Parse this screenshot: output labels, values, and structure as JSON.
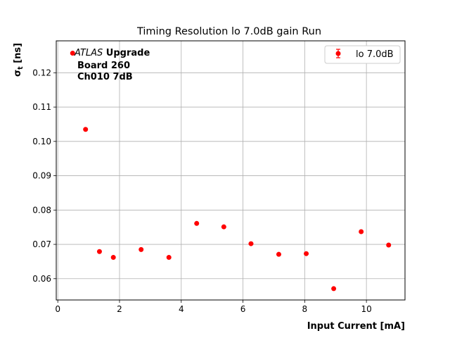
{
  "chart_data": {
    "type": "scatter",
    "title": "Timing Resolution lo 7.0dB gain Run",
    "xlabel": "Input Current [mA]",
    "ylabel_main": "σ",
    "ylabel_sub": "t",
    "ylabel_unit": " [ns]",
    "xlim": [
      -0.05,
      11.25
    ],
    "ylim": [
      0.0538,
      0.1293
    ],
    "x_ticks": [
      0,
      2,
      4,
      6,
      8,
      10
    ],
    "x_tick_labels": [
      "0",
      "2",
      "4",
      "6",
      "8",
      "10"
    ],
    "y_ticks": [
      0.06,
      0.07,
      0.08,
      0.09,
      0.1,
      0.11,
      0.12
    ],
    "y_tick_labels": [
      "0.06",
      "0.07",
      "0.08",
      "0.09",
      "0.10",
      "0.11",
      "0.12"
    ],
    "grid": true,
    "legend_position": "top-right",
    "marker_color": "#ff0000",
    "series": [
      {
        "name": "lo 7.0dB",
        "x": [
          0.9,
          1.35,
          1.8,
          2.7,
          3.6,
          4.5,
          5.38,
          6.26,
          7.16,
          8.05,
          8.94,
          9.83,
          10.72
        ],
        "y": [
          0.1035,
          0.0679,
          0.0662,
          0.0685,
          0.0662,
          0.0761,
          0.0751,
          0.0702,
          0.0671,
          0.0673,
          0.0571,
          0.0737,
          0.0698
        ]
      }
    ],
    "annotation": {
      "atlas_italic": "ATLAS",
      "atlas_bold": " Upgrade",
      "line2": "Board 260",
      "line3": "Ch010 7dB",
      "marker_x": 0.48,
      "marker_y": 0.1257
    }
  }
}
